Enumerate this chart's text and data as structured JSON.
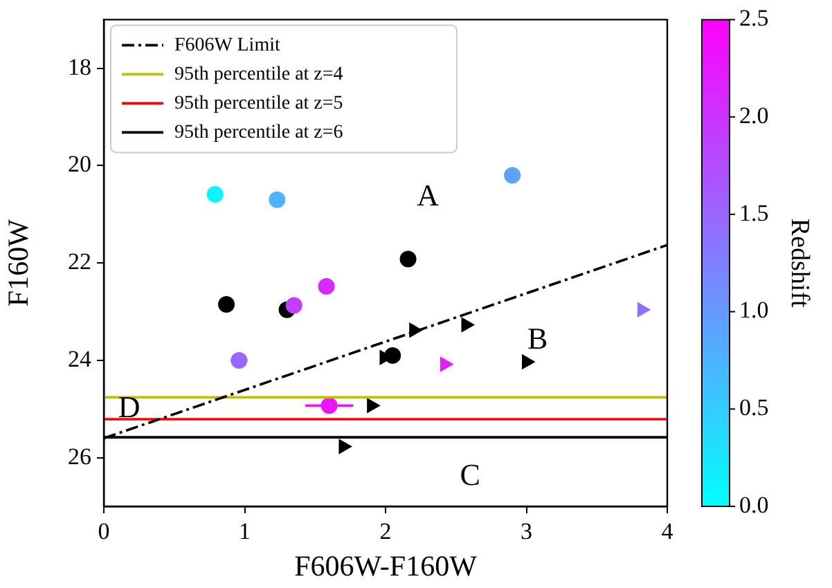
{
  "chart_data": {
    "type": "scatter",
    "xlabel": "F606W-F160W",
    "ylabel": "F160W",
    "clabel": "Redshift",
    "xlim": [
      0,
      4
    ],
    "ylim": [
      27,
      17
    ],
    "xticks": [
      0,
      1,
      2,
      3,
      4
    ],
    "yticks": [
      18,
      20,
      22,
      24,
      26
    ],
    "clim": [
      0,
      2.5
    ],
    "cticks": [
      {
        "value": 0,
        "label": "0.0"
      },
      {
        "value": 0.5,
        "label": "0.5"
      },
      {
        "value": 1,
        "label": "1.0"
      },
      {
        "value": 1.5,
        "label": "1.5"
      },
      {
        "value": 2,
        "label": "2.0"
      },
      {
        "value": 2.5,
        "label": "2.5"
      }
    ],
    "legend": "top left",
    "series": [
      {
        "type": "line",
        "name": "F606W Limit",
        "color": "#000000",
        "line_style": "dashdot",
        "x": [
          0,
          4
        ],
        "values": [
          25.6,
          21.63
        ]
      },
      {
        "type": "line",
        "name": "95th percentile at z=4",
        "color": "#bfbf00",
        "x": [
          0,
          4
        ],
        "values": [
          24.76,
          24.76
        ]
      },
      {
        "type": "line",
        "name": "95th percentile at z=5",
        "color": "#ff0000",
        "x": [
          0,
          4
        ],
        "values": [
          25.21,
          25.21
        ]
      },
      {
        "type": "line",
        "name": "95th percentile at z=6",
        "color": "#000000",
        "x": [
          0,
          4
        ],
        "values": [
          25.58,
          25.58
        ]
      },
      {
        "marker": "circle",
        "x": [
          0.79,
          1.23,
          2.9,
          1.58,
          1.35,
          0.96,
          1.6
        ],
        "values": [
          20.59,
          20.7,
          20.2,
          22.48,
          22.87,
          24.0,
          24.93
        ],
        "cvalues": [
          0.1,
          0.75,
          0.9,
          2.1,
          1.9,
          1.5,
          2.3
        ],
        "colors": [
          "#0af5ff",
          "#4db3ff",
          "#5ca3ff",
          "#d629ff",
          "#c23dff",
          "#9966ff",
          "#eb14ff"
        ],
        "xerrors": [
          null,
          null,
          0.06,
          null,
          null,
          0.06,
          0.17
        ]
      },
      {
        "marker": "circle",
        "color": "#000000",
        "x": [
          2.16,
          0.87,
          1.3,
          2.05
        ],
        "values": [
          21.92,
          22.85,
          22.96,
          23.9
        ]
      },
      {
        "marker": "triangle",
        "x": [
          3.82,
          2.42
        ],
        "values": [
          22.96,
          24.08
        ],
        "cvalues": [
          1.4,
          2.2
        ],
        "colors": [
          "#8f70ff",
          "#e01fff"
        ]
      },
      {
        "marker": "triangle",
        "color": "#000000",
        "x": [
          2.2,
          2.57,
          3.0,
          1.99,
          1.9,
          1.7
        ],
        "values": [
          23.38,
          23.27,
          24.03,
          23.94,
          24.93,
          25.77
        ]
      }
    ],
    "annotations": [
      "A",
      "B",
      "C",
      "D"
    ]
  }
}
